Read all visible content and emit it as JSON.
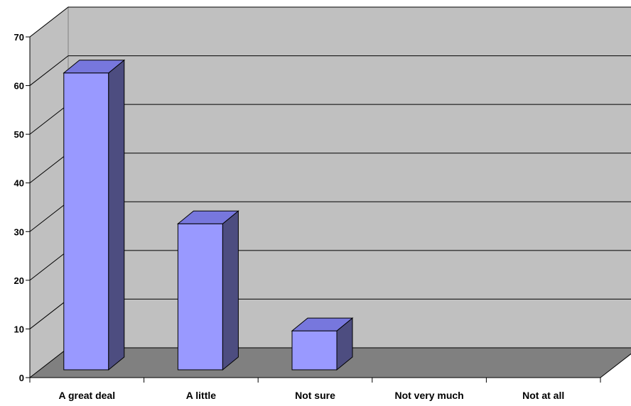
{
  "chart_data": {
    "type": "bar",
    "style": "3d-column",
    "categories": [
      "A great deal",
      "A little",
      "Not sure",
      "Not very much",
      "Not at all"
    ],
    "values": [
      61,
      30,
      8,
      0,
      0
    ],
    "title": "",
    "xlabel": "",
    "ylabel": "",
    "ylim": [
      0,
      70
    ],
    "yticks": [
      0,
      10,
      20,
      30,
      40,
      50,
      60,
      70
    ],
    "grid": true,
    "legend": "none",
    "colors": {
      "bar_front": "#9999ff",
      "bar_top": "#7777dd",
      "bar_side": "#4d4d80",
      "wall": "#c0c0c0",
      "floor": "#808080",
      "gridline": "#000000"
    }
  }
}
